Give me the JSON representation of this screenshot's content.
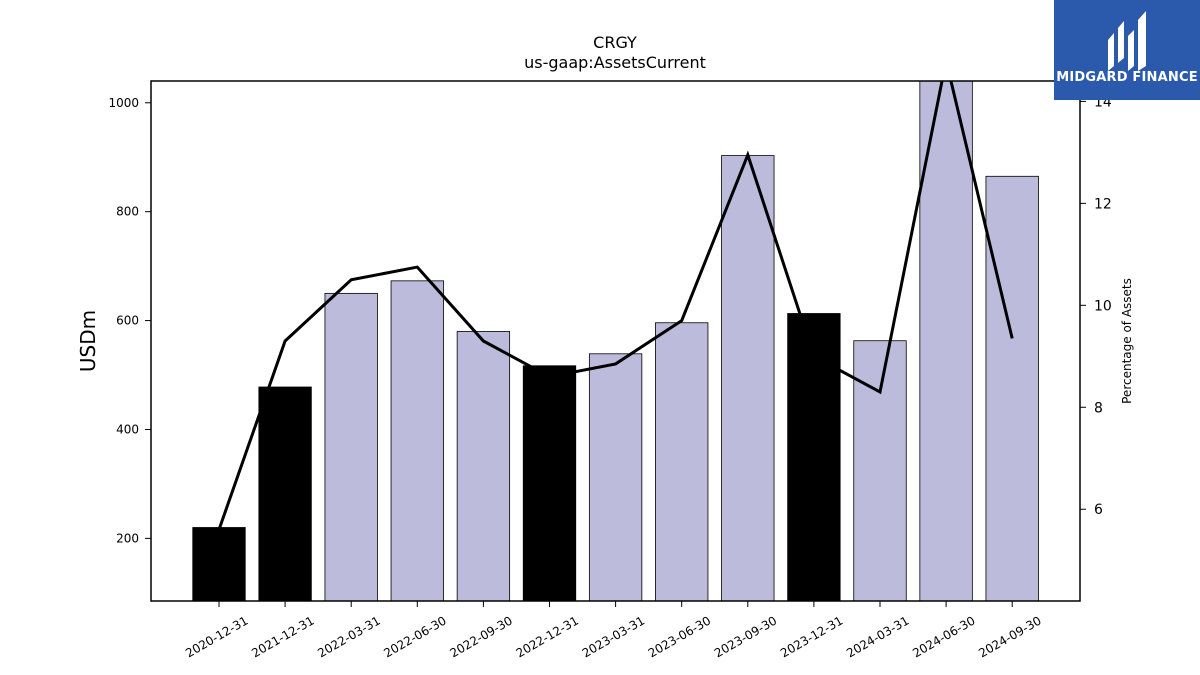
{
  "chart_data": {
    "type": "bar",
    "title": "CRGY",
    "subtitle": "us-gaap:AssetsCurrent",
    "ylabel": "USDm",
    "ylabel_right": "Percentage of Assets",
    "ylim": [
      85,
      1040
    ],
    "ylim_right": [
      4.2,
      14.4
    ],
    "yticks": [
      200,
      400,
      600,
      800,
      1000
    ],
    "yticks_right": [
      6,
      8,
      10,
      12,
      14
    ],
    "categories": [
      "2020-12-31",
      "2021-12-31",
      "2022-03-31",
      "2022-06-30",
      "2022-09-30",
      "2022-12-31",
      "2023-03-31",
      "2023-06-30",
      "2023-09-30",
      "2023-12-31",
      "2024-03-31",
      "2024-06-30",
      "2024-09-30"
    ],
    "series": [
      {
        "values": [
          220,
          478,
          650,
          673,
          580,
          517,
          539,
          596,
          903,
          613,
          563,
          1045,
          865
        ],
        "bar_colors": [
          "#000000",
          "#000000",
          "#bdbbdb",
          "#bdbbdb",
          "#bdbbdb",
          "#000000",
          "#bdbbdb",
          "#bdbbdb",
          "#bdbbdb",
          "#000000",
          "#bdbbdb",
          "#bdbbdb",
          "#bdbbdb"
        ]
      },
      {
        "axis": "right",
        "type": "line",
        "color": "#000000",
        "values": [
          5.6,
          9.3,
          10.5,
          10.75,
          9.3,
          8.6,
          8.85,
          9.7,
          12.95,
          9.0,
          8.3,
          14.8,
          9.35
        ]
      }
    ],
    "grid": false,
    "legend": "none"
  },
  "logo": {
    "text": "MIDGARD FINANCE",
    "background": "#2b5aad"
  }
}
